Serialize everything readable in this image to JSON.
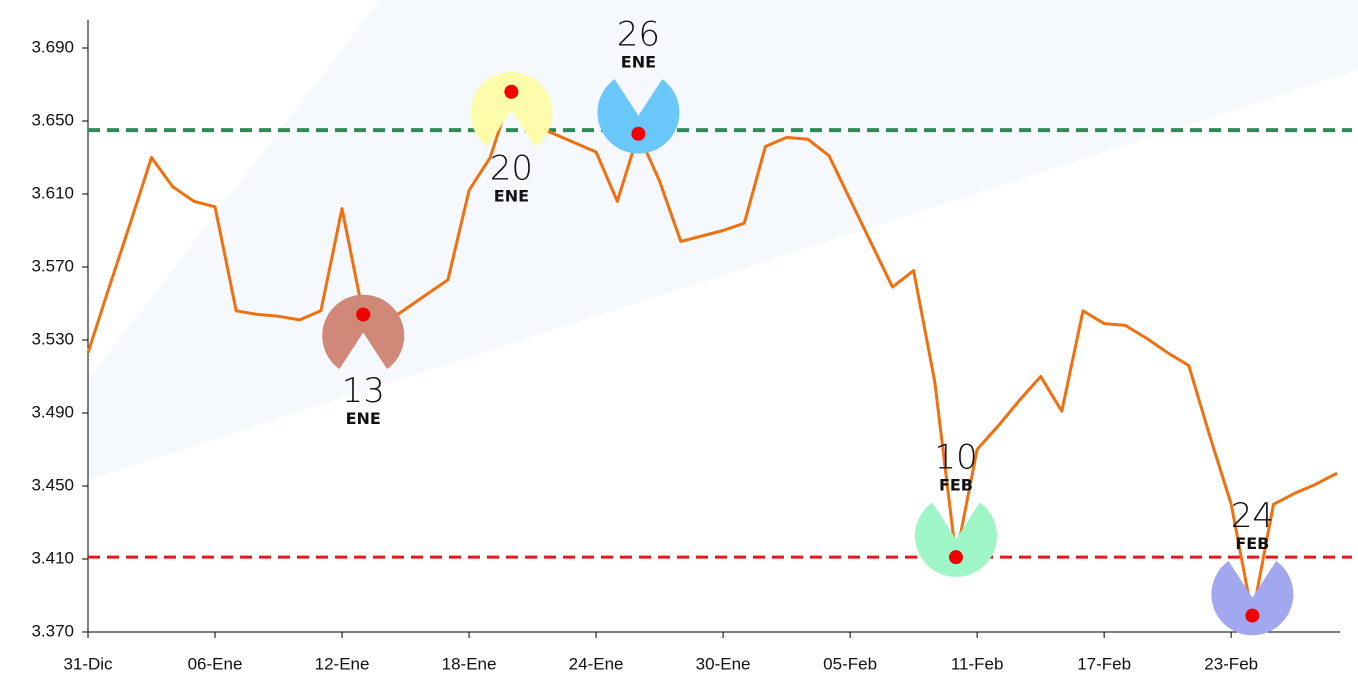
{
  "chart_data": {
    "type": "line",
    "categories": [
      "31-Dic",
      null,
      null,
      null,
      null,
      null,
      "06-Ene",
      null,
      null,
      null,
      null,
      null,
      "12-Ene",
      null,
      null,
      null,
      null,
      null,
      "18-Ene",
      null,
      null,
      null,
      null,
      null,
      "24-Ene",
      null,
      null,
      null,
      null,
      null,
      "30-Ene",
      null,
      null,
      null,
      null,
      null,
      "05-Feb",
      null,
      null,
      null,
      null,
      null,
      "11-Feb",
      null,
      null,
      null,
      null,
      null,
      "17-Feb",
      null,
      null,
      null,
      null,
      null,
      "23-Feb",
      null,
      null,
      null,
      null,
      null
    ],
    "series": [
      {
        "color": "#f07010",
        "values": [
          3.523,
          3.559,
          3.594,
          3.63,
          3.614,
          3.606,
          3.603,
          3.546,
          3.544,
          3.543,
          3.541,
          3.546,
          3.602,
          3.544,
          3.539,
          3.547,
          3.555,
          3.563,
          3.612,
          3.63,
          3.666,
          3.648,
          3.643,
          3.638,
          3.633,
          3.606,
          3.643,
          3.617,
          3.584,
          3.587,
          3.59,
          3.594,
          3.636,
          3.641,
          3.64,
          3.631,
          3.607,
          3.583,
          3.559,
          3.568,
          3.507,
          3.411,
          3.47,
          3.483,
          3.497,
          3.51,
          3.491,
          3.546,
          3.539,
          3.538,
          3.531,
          3.523,
          3.516,
          3.477,
          3.44,
          3.379,
          3.44,
          3.446,
          3.451,
          3.457
        ]
      }
    ],
    "ylim": [
      3.37,
      3.69
    ],
    "yticks": [
      {
        "value": 3.37,
        "label": "3.370"
      },
      {
        "value": 3.41,
        "label": "3.410"
      },
      {
        "value": 3.45,
        "label": "3.450"
      },
      {
        "value": 3.49,
        "label": "3.490"
      },
      {
        "value": 3.53,
        "label": "3.530"
      },
      {
        "value": 3.57,
        "label": "3.570"
      },
      {
        "value": 3.61,
        "label": "3.610"
      },
      {
        "value": 3.65,
        "label": "3.650"
      },
      {
        "value": 3.69,
        "label": "3.690"
      }
    ],
    "reference_lines": [
      {
        "value": 3.645,
        "color": "#2e8b57"
      },
      {
        "value": 3.411,
        "color": "#e8161b"
      }
    ],
    "annotations": [
      {
        "index": 13,
        "day": "13",
        "month": "ENE",
        "color": "#d08878",
        "side": "below"
      },
      {
        "index": 20,
        "day": "20",
        "month": "ENE",
        "color": "#fdfcaa",
        "side": "below"
      },
      {
        "index": 26,
        "day": "26",
        "month": "ENE",
        "color": "#6ac7f9",
        "side": "above"
      },
      {
        "index": 41,
        "day": "10",
        "month": "FEB",
        "color": "#9ef5c6",
        "side": "above"
      },
      {
        "index": 55,
        "day": "24",
        "month": "FEB",
        "color": "#a2a8f0",
        "side": "above"
      }
    ]
  }
}
